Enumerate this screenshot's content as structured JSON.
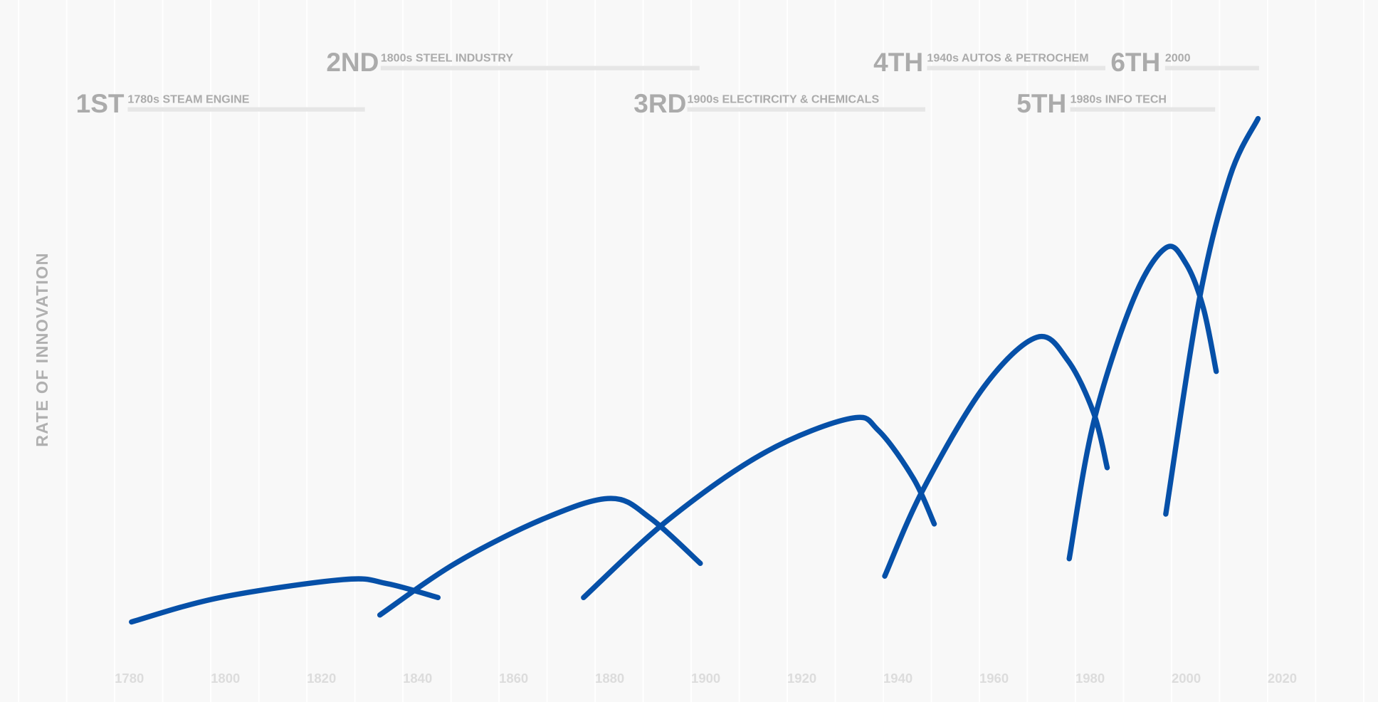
{
  "chart_data": {
    "type": "line",
    "y_label": "RATE OF INNOVATION",
    "xlim": [
      1756.2,
      2042.9
    ],
    "ylim": [
      0,
      100
    ],
    "xticks": [
      1780,
      1800,
      1820,
      1840,
      1860,
      1880,
      1900,
      1920,
      1940,
      1960,
      1980,
      2000,
      2020
    ],
    "xgrid": [
      1760,
      1770,
      1780,
      1790,
      1800,
      1810,
      1820,
      1830,
      1840,
      1850,
      1860,
      1870,
      1880,
      1890,
      1900,
      1910,
      1920,
      1930,
      1940,
      1950,
      1960,
      1970,
      1980,
      1990,
      2000,
      2010,
      2020,
      2030,
      2040
    ],
    "grid": true,
    "series": [
      {
        "name": "1ST",
        "label": "1780s STEAM ENGINE",
        "color": "#0650a8",
        "x": [
          1783.5,
          1801.9,
          1827.5,
          1836.7,
          1847.3
        ],
        "values": [
          7.9,
          12.1,
          15.2,
          14.5,
          12.1
        ]
      },
      {
        "name": "2ND",
        "label": "1800s STEEL INDUSTRY",
        "color": "#0650a8",
        "x": [
          1835.2,
          1851.3,
          1869.6,
          1883.3,
          1891.5,
          1901.9
        ],
        "values": [
          9.1,
          18.2,
          25.8,
          29.2,
          25.8,
          18.0
        ]
      },
      {
        "name": "3RD",
        "label": "1900s ELECTIRCITY & CHEMICALS",
        "color": "#0650a8",
        "x": [
          1877.6,
          1895.2,
          1915.3,
          1933.2,
          1939.0,
          1946.3,
          1950.6
        ],
        "values": [
          12.1,
          25.5,
          37.1,
          43.0,
          40.9,
          32.6,
          24.8
        ]
      },
      {
        "name": "4TH",
        "label": "1940s AUTOS & PETROCHEM",
        "color": "#0650a8",
        "x": [
          1940.3,
          1948.2,
          1961.0,
          1972.0,
          1978.4,
          1983.8,
          1986.6
        ],
        "values": [
          15.8,
          30.6,
          48.5,
          57.0,
          53.0,
          43.9,
          34.5
        ]
      },
      {
        "name": "5TH",
        "label": "1980s INFO TECH",
        "color": "#0650a8",
        "x": [
          1978.7,
          1983.8,
          1992.1,
          1998.8,
          2003.0,
          2006.6,
          2009.3
        ],
        "values": [
          18.8,
          42.4,
          63.6,
          72.4,
          69.7,
          62.1,
          51.1
        ]
      },
      {
        "name": "6TH",
        "label": "2000",
        "color": "#0650a8",
        "x": [
          1998.8,
          2005.8,
          2012.2,
          2018.0
        ],
        "values": [
          26.5,
          63.6,
          84.8,
          94.7
        ]
      }
    ]
  }
}
